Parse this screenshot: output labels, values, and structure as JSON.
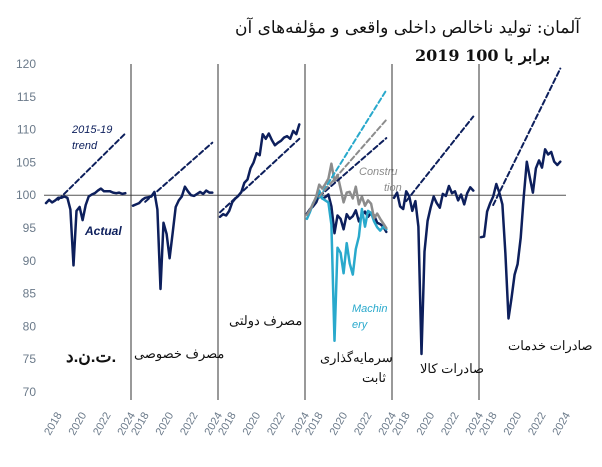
{
  "title": "آلمان: تولید ناخالص داخلی واقعی و مؤلفه‌های آن",
  "subtitle": "2019 برابر با 100",
  "colors": {
    "actual": "#0d1f5c",
    "trend": "#0d1f5c",
    "machinery": "#29a9cc",
    "construction": "#8c8c8c",
    "axis_text": "#6b7a8a",
    "separator": "#333333",
    "baseline": "#555555"
  },
  "chart_data": {
    "type": "line",
    "y_axis": {
      "ticks": [
        70,
        75,
        80,
        85,
        90,
        95,
        100,
        105,
        110,
        115,
        120
      ],
      "ylim": [
        70,
        120
      ]
    },
    "x_axis": {
      "range": [
        2018,
        2024.8
      ],
      "ticks": [
        2018,
        2020,
        2022,
        2024
      ]
    },
    "panels": [
      {
        "label": "ت.ن.د.",
        "annotations": [
          "2015-19",
          "trend",
          "Actual"
        ],
        "series": [
          {
            "name": "Actual",
            "x": [
              2018,
              2018.25,
              2018.5,
              2018.75,
              2019,
              2019.25,
              2019.5,
              2019.75,
              2020,
              2020.25,
              2020.5,
              2020.75,
              2021,
              2021.25,
              2021.5,
              2021.75,
              2022,
              2022.25,
              2022.5,
              2022.75,
              2023,
              2023.25,
              2023.5,
              2023.75,
              2024,
              2024.25,
              2024.5
            ],
            "values": [
              98.8,
              99.3,
              98.9,
              99.2,
              99.6,
              99.6,
              99.8,
              99.6,
              97.8,
              89.3,
              97.6,
              98.2,
              96.2,
              98.5,
              99.8,
              100.1,
              100.3,
              100.7,
              101.0,
              100.6,
              100.6,
              100.6,
              100.4,
              100.3,
              100.4,
              100.2,
              100.3
            ]
          },
          {
            "name": "trend",
            "style": "dashed",
            "x": [
              2019,
              2024.5
            ],
            "values": [
              99.3,
              109.4
            ]
          }
        ]
      },
      {
        "label": "مصرف خصوصی",
        "series": [
          {
            "name": "Actual",
            "x": [
              2018,
              2018.25,
              2018.5,
              2018.75,
              2019,
              2019.25,
              2019.5,
              2019.75,
              2020,
              2020.25,
              2020.5,
              2020.75,
              2021,
              2021.25,
              2021.5,
              2021.75,
              2022,
              2022.25,
              2022.5,
              2022.75,
              2023,
              2023.25,
              2023.5,
              2023.75,
              2024,
              2024.25,
              2024.5
            ],
            "values": [
              98.4,
              98.6,
              98.8,
              99.3,
              99.6,
              99.7,
              99.8,
              100.5,
              97.8,
              85.7,
              95.8,
              94.1,
              90.4,
              94.3,
              98.2,
              99.2,
              99.8,
              101.3,
              100.6,
              100.0,
              99.9,
              100.2,
              100.5,
              100.2,
              100.7,
              100.4,
              100.4
            ]
          },
          {
            "name": "trend",
            "style": "dashed",
            "x": [
              2019,
              2024.5
            ],
            "values": [
              99.0,
              108.0
            ]
          }
        ]
      },
      {
        "label": "مصرف دولتی",
        "series": [
          {
            "name": "Actual",
            "x": [
              2018,
              2018.25,
              2018.5,
              2018.75,
              2019,
              2019.25,
              2019.5,
              2019.75,
              2020,
              2020.25,
              2020.5,
              2020.75,
              2021,
              2021.25,
              2021.5,
              2021.75,
              2022,
              2022.25,
              2022.5,
              2022.75,
              2023,
              2023.25,
              2023.5,
              2023.75,
              2024,
              2024.25,
              2024.5
            ],
            "values": [
              96.7,
              97.1,
              96.9,
              97.6,
              98.9,
              99.5,
              99.9,
              100.5,
              101.9,
              102.4,
              104.1,
              105.0,
              106.4,
              106.1,
              109.3,
              108.6,
              109.4,
              108.4,
              107.6,
              108.0,
              108.3,
              108.8,
              109.0,
              108.6,
              109.8,
              109.3,
              110.8
            ]
          },
          {
            "name": "trend",
            "style": "dashed",
            "x": [
              2018,
              2024.5
            ],
            "values": [
              97.4,
              108.6
            ]
          }
        ]
      },
      {
        "label": "سرمایه‌گذاری ثابت",
        "annotations": [
          "Constru",
          "tion",
          "Machin",
          "ery"
        ],
        "series": [
          {
            "name": "Actual",
            "x": [
              2018,
              2018.25,
              2018.5,
              2018.75,
              2019,
              2019.25,
              2019.5,
              2019.75,
              2020,
              2020.25,
              2020.5,
              2020.75,
              2021,
              2021.25,
              2021.5,
              2021.75,
              2022,
              2022.25,
              2022.5,
              2022.75,
              2023,
              2023.25,
              2023.5,
              2023.75,
              2024,
              2024.25,
              2024.5
            ],
            "values": [
              97.2,
              97.9,
              98.3,
              98.9,
              100.1,
              99.5,
              99.7,
              100.1,
              98.3,
              94.2,
              96.9,
              96.4,
              94.8,
              97.1,
              96.4,
              96.8,
              97.7,
              96.0,
              96.9,
              97.5,
              96.7,
              97.3,
              96.9,
              95.8,
              95.6,
              95.2,
              94.4
            ]
          },
          {
            "name": "Machinery",
            "x": [
              2018,
              2018.25,
              2018.5,
              2018.75,
              2019,
              2019.25,
              2019.5,
              2019.75,
              2020,
              2020.25,
              2020.5,
              2020.75,
              2021,
              2021.25,
              2021.5,
              2021.75,
              2022,
              2022.25,
              2022.5,
              2022.75,
              2023,
              2023.25,
              2023.5,
              2023.75,
              2024,
              2024.25,
              2024.5
            ],
            "values": [
              96.4,
              97.5,
              98.8,
              99.6,
              100.7,
              99.5,
              99.2,
              98.9,
              95.5,
              77.8,
              92.0,
              91.2,
              88.1,
              92.7,
              89.6,
              87.9,
              91.8,
              93.7,
              97.9,
              95.2,
              97.6,
              97.3,
              96.0,
              95.1,
              94.6,
              95.2,
              94.8
            ]
          },
          {
            "name": "Construction",
            "x": [
              2018,
              2018.25,
              2018.5,
              2018.75,
              2019,
              2019.25,
              2019.5,
              2019.75,
              2020,
              2020.25,
              2020.5,
              2020.75,
              2021,
              2021.25,
              2021.5,
              2021.75,
              2022,
              2022.25,
              2022.5,
              2022.75,
              2023,
              2023.25,
              2023.5,
              2023.75,
              2024,
              2024.25,
              2024.5
            ],
            "values": [
              97.0,
              97.8,
              98.7,
              99.8,
              101.6,
              101.0,
              101.7,
              102.5,
              104.8,
              102.1,
              103.1,
              101.0,
              98.9,
              100.4,
              100.5,
              99.5,
              101.3,
              98.6,
              99.8,
              98.4,
              99.2,
              98.7,
              96.5,
              97.2,
              96.4,
              95.7,
              95.0
            ]
          },
          {
            "name": "trend-actual",
            "style": "dashed",
            "x": [
              2019,
              2024.5
            ],
            "values": [
              99.8,
              108.7
            ]
          },
          {
            "name": "trend-machinery",
            "style": "dashed",
            "x": [
              2019,
              2024.5
            ],
            "values": [
              99.6,
              116.0
            ]
          },
          {
            "name": "trend-construction",
            "style": "dashed",
            "x": [
              2019,
              2024.5
            ],
            "values": [
              99.8,
              111.5
            ]
          }
        ]
      },
      {
        "label": "صادرات کالا",
        "series": [
          {
            "name": "Actual",
            "x": [
              2018,
              2018.25,
              2018.5,
              2018.75,
              2019,
              2019.25,
              2019.5,
              2019.75,
              2020,
              2020.25,
              2020.5,
              2020.75,
              2021,
              2021.25,
              2021.5,
              2021.75,
              2022,
              2022.25,
              2022.5,
              2022.75,
              2023,
              2023.25,
              2023.5,
              2023.75,
              2024,
              2024.25,
              2024.5
            ],
            "values": [
              99.6,
              100.4,
              98.3,
              97.9,
              100.6,
              99.8,
              97.6,
              99.1,
              95.2,
              75.8,
              91.4,
              96.1,
              98.1,
              99.8,
              98.8,
              98.1,
              100.2,
              99.9,
              101.4,
              100.3,
              100.6,
              99.2,
              100.1,
              98.6,
              100.3,
              101.2,
              100.7
            ]
          },
          {
            "name": "trend",
            "style": "dashed",
            "x": [
              2019,
              2024.5
            ],
            "values": [
              99.1,
              112.0
            ]
          }
        ]
      },
      {
        "label": "صادرات خدمات",
        "series": [
          {
            "name": "Actual",
            "x": [
              2018,
              2018.25,
              2018.5,
              2018.75,
              2019,
              2019.25,
              2019.5,
              2019.75,
              2020,
              2020.25,
              2020.5,
              2020.75,
              2021,
              2021.25,
              2021.5,
              2021.75,
              2022,
              2022.25,
              2022.5,
              2022.75,
              2023,
              2023.25,
              2023.5,
              2023.75,
              2024,
              2024.25,
              2024.5
            ],
            "values": [
              93.6,
              93.7,
              97.5,
              98.8,
              99.8,
              101.7,
              100.4,
              98.6,
              91.1,
              81.2,
              84.3,
              87.9,
              89.5,
              93.5,
              99.7,
              105.1,
              102.7,
              100.4,
              104.1,
              105.3,
              104.2,
              107.0,
              106.2,
              106.6,
              105.1,
              104.6,
              105.1
            ]
          },
          {
            "name": "trend",
            "style": "dashed",
            "x": [
              2019,
              2024.5
            ],
            "values": [
              98.5,
              119.3
            ]
          }
        ]
      }
    ]
  }
}
